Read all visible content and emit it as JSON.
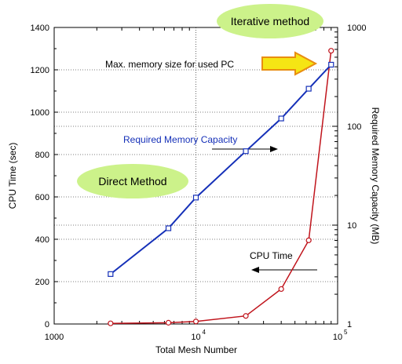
{
  "chart_data": {
    "type": "line",
    "x": [
      2500,
      6400,
      10000,
      22500,
      40000,
      62500,
      90000
    ],
    "xscale": "log",
    "xlim": [
      1000,
      100000
    ],
    "xlabel": "Total Mesh Number",
    "x_ticks": [
      {
        "value": 1000,
        "base": "1000",
        "sup": ""
      },
      {
        "value": 10000,
        "base": "10",
        "sup": "4"
      },
      {
        "value": 100000,
        "base": "10",
        "sup": "5"
      }
    ],
    "y_left": {
      "label": "CPU Time (sec)",
      "lim": [
        0,
        1400
      ],
      "ticks": [
        "0",
        "200",
        "400",
        "600",
        "800",
        "1000",
        "1200",
        "1400"
      ]
    },
    "y_right": {
      "label": "Required Memory Capacity (MB)",
      "scale": "log",
      "lim": [
        1,
        1000
      ],
      "ticks": [
        "1",
        "10",
        "100",
        "1000"
      ]
    },
    "grid": true,
    "series": [
      {
        "name": "CPU Time",
        "axis": "left",
        "color": "#c0141c",
        "marker": "circle",
        "values": [
          3,
          6,
          12,
          38,
          165,
          395,
          1290
        ]
      },
      {
        "name": "Required Memory Capacity",
        "axis": "right",
        "color": "#1530b8",
        "marker": "square",
        "values": [
          3.2,
          9.3,
          19,
          56,
          120,
          240,
          420
        ]
      }
    ],
    "annotations": {
      "memory_label": "Required Memory Capacity",
      "cpu_label": "CPU Time",
      "max_memory": "Max. memory size for used PC",
      "direct": "Direct Method",
      "iterative": "Iterative method"
    }
  },
  "colors": {
    "cpu": "#c0141c",
    "memory": "#1530b8",
    "bubble": "#ccf28a",
    "arrow": "#f5e514",
    "arrow_stroke": "#e98d10"
  }
}
